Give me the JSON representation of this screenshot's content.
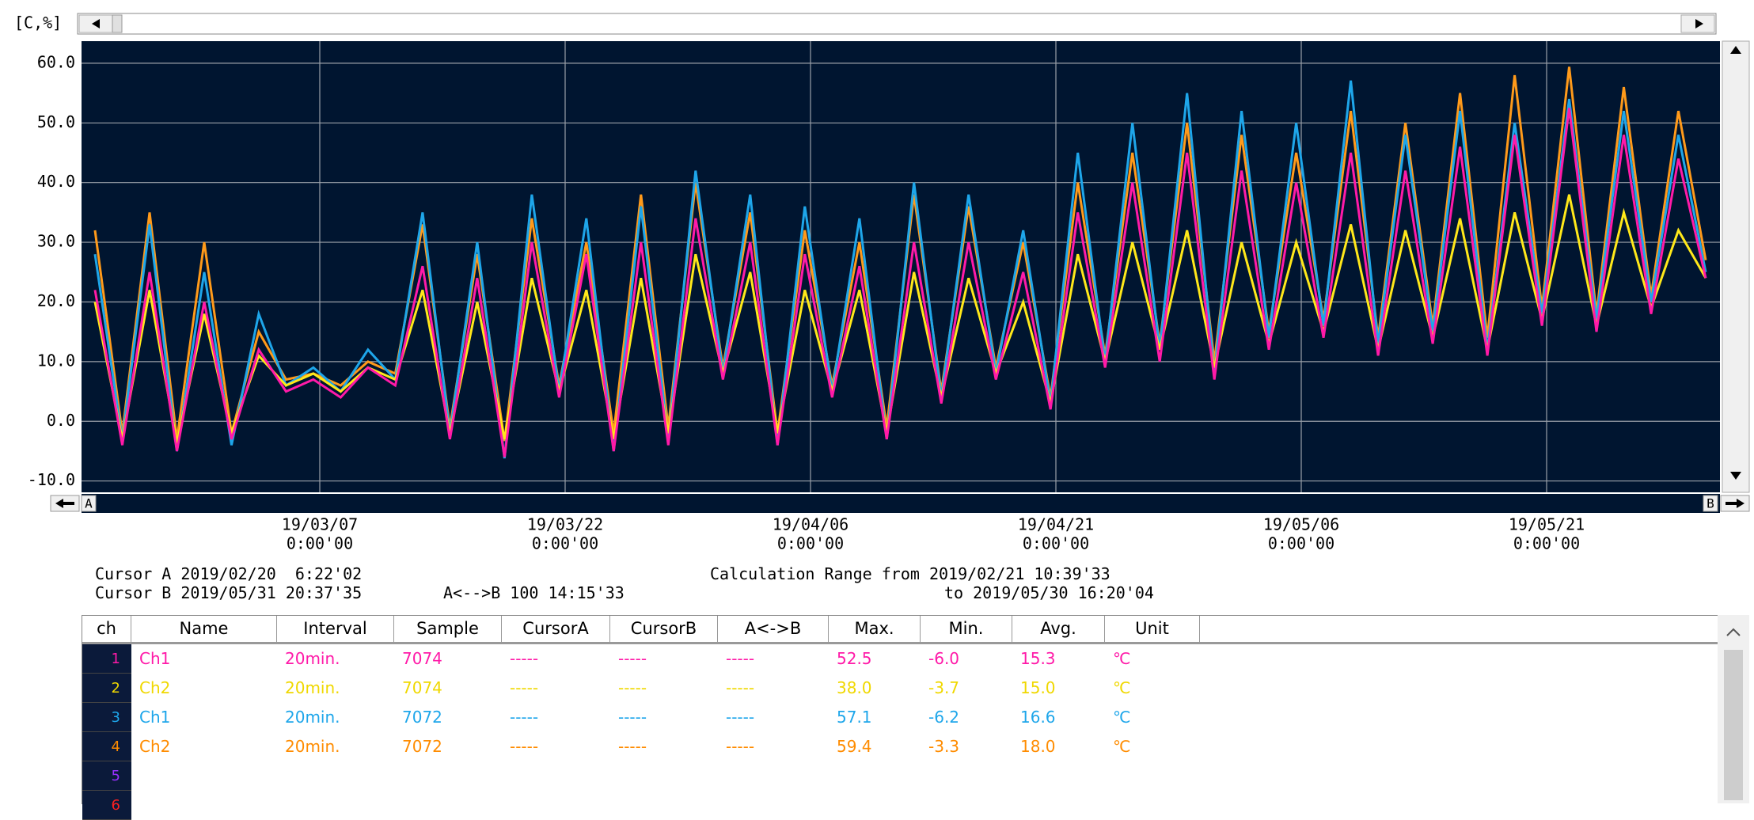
{
  "y_axis_label": "[C,%]",
  "chart_data": {
    "type": "line",
    "ylim": [
      -11.9,
      63.7
    ],
    "yticks": [
      {
        "value": -10,
        "label": "-10.0"
      },
      {
        "value": 0,
        "label": "0.0"
      },
      {
        "value": 10,
        "label": "10.0"
      },
      {
        "value": 20,
        "label": "20.0"
      },
      {
        "value": 30,
        "label": "30.0"
      },
      {
        "value": 40,
        "label": "40.0"
      },
      {
        "value": 50,
        "label": "50.0"
      },
      {
        "value": 60,
        "label": "60.0"
      }
    ],
    "x_tick_labels": [
      [
        "19/03/07",
        "0:00'00"
      ],
      [
        "19/03/22",
        "0:00'00"
      ],
      [
        "19/04/06",
        "0:00'00"
      ],
      [
        "19/04/21",
        "0:00'00"
      ],
      [
        "19/05/06",
        "0:00'00"
      ],
      [
        "19/05/21",
        "0:00'00"
      ]
    ],
    "grid": true,
    "series": [
      {
        "color": "#ff9a1a",
        "values": [
          32,
          -2,
          35,
          -3,
          30,
          -2,
          15,
          7,
          8,
          6,
          10,
          8,
          33,
          -1,
          28,
          -3.3,
          34,
          6,
          30,
          -2,
          38,
          -1,
          40,
          9,
          35,
          -2,
          32,
          6,
          30,
          -1,
          38,
          5,
          36,
          9,
          30,
          4,
          40,
          11,
          45,
          13,
          50,
          10,
          48,
          15,
          45,
          17,
          52,
          14,
          50,
          16,
          55,
          14,
          58,
          19,
          59.4,
          18,
          56,
          21,
          52,
          27
        ]
      },
      {
        "color": "#1ea6ea",
        "values": [
          28,
          -3,
          33,
          -5,
          25,
          -4,
          18,
          6,
          9,
          5,
          12,
          7,
          35,
          -2,
          30,
          -6.2,
          38,
          5,
          34,
          -5,
          36,
          -3,
          42,
          8,
          38,
          -4,
          36,
          5,
          34,
          -3,
          40,
          4,
          38,
          8,
          32,
          3,
          45,
          10,
          50,
          12,
          55,
          8,
          52,
          14,
          50,
          16,
          57.1,
          13,
          48,
          15,
          52,
          12,
          50,
          18,
          54,
          17,
          52,
          20,
          48,
          25
        ]
      },
      {
        "color": "#ffe81a",
        "values": [
          20,
          -3,
          22,
          -3.7,
          18,
          -2,
          11,
          6,
          8,
          5,
          9,
          7,
          22,
          -2,
          20,
          -3,
          24,
          5,
          22,
          -3,
          24,
          -2,
          28,
          8,
          25,
          -2,
          22,
          5,
          22,
          -2,
          25,
          4,
          24,
          8,
          20,
          3,
          28,
          10,
          30,
          12,
          32,
          9,
          30,
          13,
          30,
          15,
          33,
          12,
          32,
          14,
          34,
          12,
          35,
          17,
          38,
          16,
          35,
          19,
          32,
          24
        ]
      },
      {
        "color": "#ff1aa8",
        "values": [
          22,
          -4,
          25,
          -5,
          20,
          -3,
          12,
          5,
          7,
          4,
          9,
          6,
          26,
          -3,
          24,
          -6,
          30,
          4,
          28,
          -5,
          30,
          -4,
          34,
          7,
          30,
          -4,
          28,
          4,
          26,
          -3,
          30,
          3,
          30,
          7,
          25,
          2,
          35,
          9,
          40,
          10,
          45,
          7,
          42,
          12,
          40,
          14,
          45,
          11,
          42,
          13,
          46,
          11,
          48,
          16,
          52.5,
          15,
          48,
          18,
          44,
          24
        ]
      }
    ]
  },
  "scroll_a": "A",
  "scroll_b": "B",
  "cursor_a": "Cursor A 2019/02/20  6:22'02",
  "cursor_b": "Cursor B 2019/05/31 20:37'35",
  "a_b": "A<-->B 100 14:15'33",
  "calc_from": "Calculation Range from 2019/02/21 10:39'33",
  "calc_to": "to 2019/05/30 16:20'04",
  "table": {
    "headers": [
      "ch",
      "Name",
      "Interval",
      "Sample",
      "CursorA",
      "CursorB",
      "A<->B",
      "Max.",
      "Min.",
      "Avg.",
      "Unit"
    ],
    "rows": [
      {
        "color": "#ff1aa8",
        "cells": [
          "1",
          "Ch1",
          "20min.",
          "7074",
          "-----",
          "-----",
          "-----",
          "52.5",
          "-6.0",
          "15.3",
          "℃"
        ]
      },
      {
        "color": "#f0d800",
        "cells": [
          "2",
          "Ch2",
          "20min.",
          "7074",
          "-----",
          "-----",
          "-----",
          "38.0",
          "-3.7",
          "15.0",
          "℃"
        ]
      },
      {
        "color": "#1ea6ea",
        "cells": [
          "3",
          "Ch1",
          "20min.",
          "7072",
          "-----",
          "-----",
          "-----",
          "57.1",
          "-6.2",
          "16.6",
          "℃"
        ]
      },
      {
        "color": "#ff8c00",
        "cells": [
          "4",
          "Ch2",
          "20min.",
          "7072",
          "-----",
          "-----",
          "-----",
          "59.4",
          "-3.3",
          "18.0",
          "℃"
        ]
      },
      {
        "color": "#9b30ff",
        "cells": [
          "5"
        ]
      },
      {
        "color": "#ff2020",
        "cells": [
          "6"
        ]
      }
    ]
  }
}
